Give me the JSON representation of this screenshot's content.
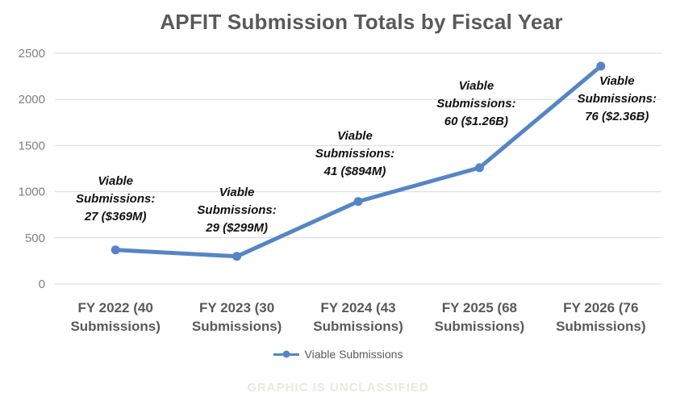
{
  "title": "APFIT Submission Totals by Fiscal Year",
  "footer": "GRAPHIC IS UNCLASSIFIED",
  "legend": {
    "label": "Viable Submissions"
  },
  "colors": {
    "line": "#5585C5",
    "grid": "#D9D9D9",
    "title_text": "#595959",
    "ytick_text": "#7F7F7F",
    "xtick_text": "#595959",
    "annotation_text": "#111111",
    "legend_text": "#595959",
    "footer_text": "#E8E8E3"
  },
  "chart_data": {
    "type": "line",
    "title": "APFIT Submission Totals by Fiscal Year",
    "categories": [
      "FY 2022 (40 Submissions)",
      "FY 2023 (30 Submissions)",
      "FY 2024 (43 Submissions)",
      "FY 2025 (68 Submissions)",
      "FY 2026 (76 Submissions)"
    ],
    "series": [
      {
        "name": "Viable Submissions",
        "values": [
          369,
          299,
          894,
          1260,
          2360
        ]
      }
    ],
    "ylim": [
      0,
      2500
    ],
    "yticks": [
      0,
      500,
      1000,
      1500,
      2000,
      2500
    ],
    "grid": true,
    "legend_position": "bottom",
    "annotations": [
      {
        "label": "Viable Submissions:",
        "value": "27 ($369M)"
      },
      {
        "label": "Viable Submissions:",
        "value": "29 ($299M)"
      },
      {
        "label": "Viable Submissions:",
        "value": "41 ($894M)"
      },
      {
        "label": "Viable Submissions:",
        "value": "60 ($1.26B)"
      },
      {
        "label": "Viable Submissions:",
        "value": "76 ($2.36B)"
      }
    ],
    "footnote": "GRAPHIC IS UNCLASSIFIED"
  }
}
